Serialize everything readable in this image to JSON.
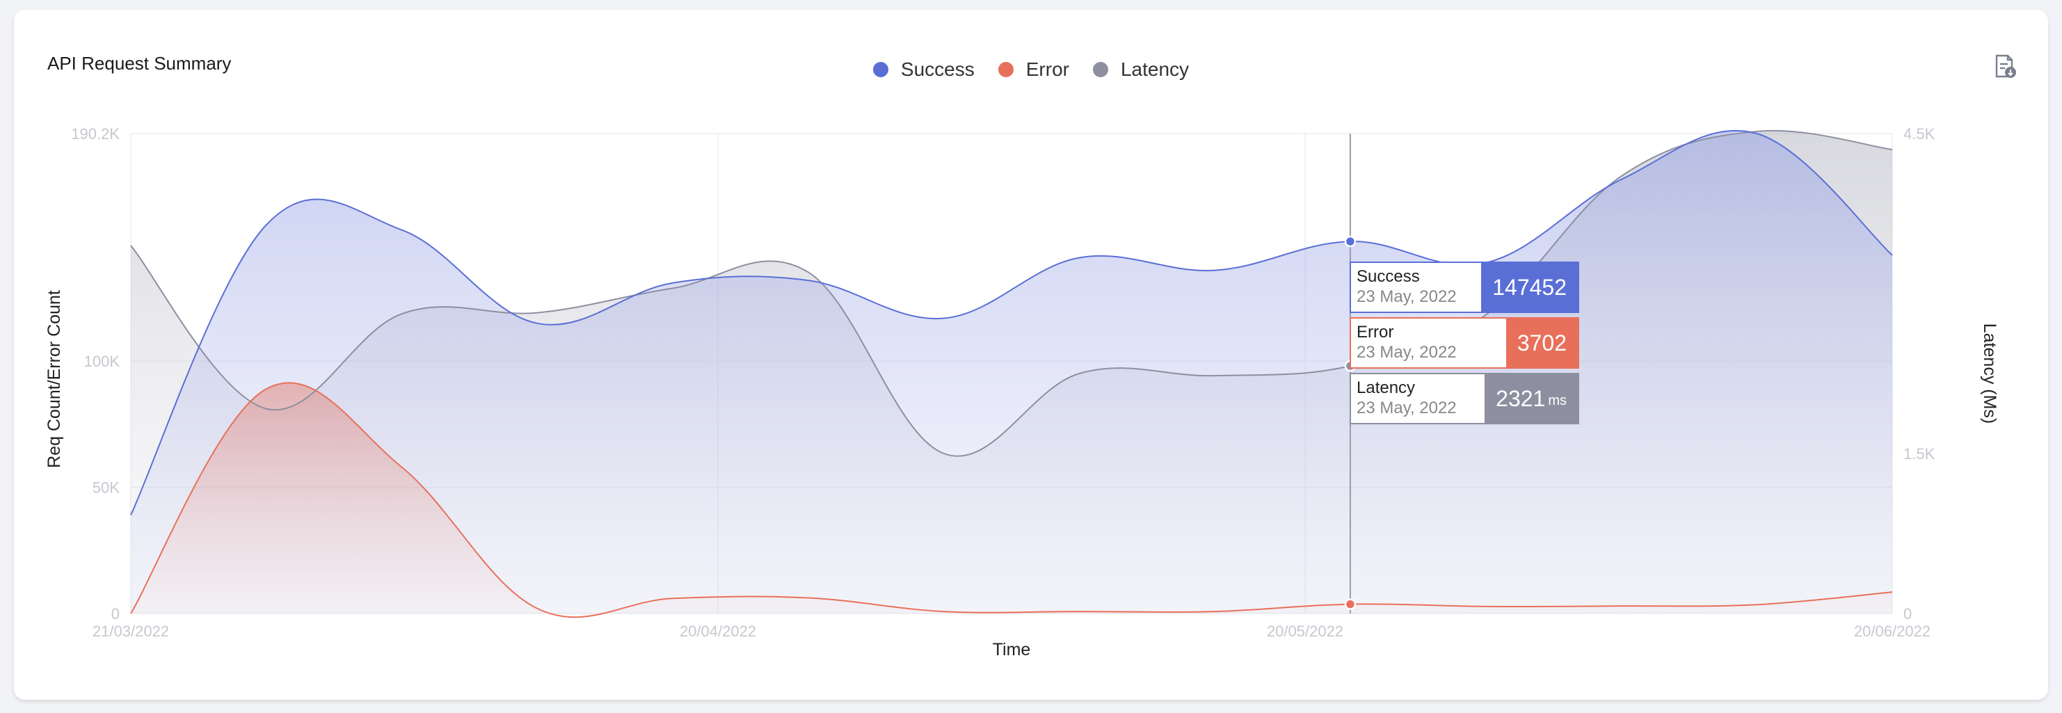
{
  "title": "API Request Summary",
  "legend": [
    {
      "label": "Success",
      "color": "#5a6fd6"
    },
    {
      "label": "Error",
      "color": "#e8705a"
    },
    {
      "label": "Latency",
      "color": "#8d8fa0"
    }
  ],
  "icons": {
    "export": "export-report-icon"
  },
  "tooltip": {
    "date": "23 May, 2022",
    "items": [
      {
        "name": "Success",
        "value": "147452",
        "unit": "",
        "color": "#5a6fd6"
      },
      {
        "name": "Error",
        "value": "3702",
        "unit": "",
        "color": "#e8705a"
      },
      {
        "name": "Latency",
        "value": "2321",
        "unit": "ms",
        "color": "#8d8fa0"
      }
    ]
  },
  "chart_data": {
    "type": "area",
    "xlabel": "Time",
    "ylabel": "Req Count/Error Count",
    "y2label": "Latency (Ms)",
    "ylim": [
      0,
      190200
    ],
    "y2lim": [
      0,
      4500
    ],
    "yticks": [
      {
        "value": 0,
        "label": "0"
      },
      {
        "value": 50000,
        "label": "50K"
      },
      {
        "value": 100000,
        "label": "100K"
      },
      {
        "value": 190200,
        "label": "190.2K"
      }
    ],
    "y2ticks": [
      {
        "value": 0,
        "label": "0"
      },
      {
        "value": 1500,
        "label": "1.5K"
      },
      {
        "value": 4500,
        "label": "4.5K"
      }
    ],
    "xticks": [
      "21/03/2022",
      "20/04/2022",
      "20/05/2022",
      "20/06/2022"
    ],
    "grid": true,
    "x": [
      "2022-03-21",
      "2022-03-28",
      "2022-04-04",
      "2022-04-11",
      "2022-04-18",
      "2022-04-25",
      "2022-05-02",
      "2022-05-09",
      "2022-05-16",
      "2022-05-23",
      "2022-05-30",
      "2022-06-06",
      "2022-06-13",
      "2022-06-20"
    ],
    "series": [
      {
        "name": "Success",
        "axis": "left",
        "color": "#5a6fd6",
        "values": [
          39000,
          154000,
          152000,
          115000,
          131000,
          132000,
          117000,
          141000,
          136000,
          147452,
          139000,
          172000,
          190200,
          142000
        ]
      },
      {
        "name": "Error",
        "axis": "left",
        "color": "#e8705a",
        "values": [
          0,
          89000,
          58000,
          2000,
          6000,
          6200,
          800,
          800,
          800,
          3702,
          2800,
          3000,
          3500,
          8500
        ]
      },
      {
        "name": "Latency",
        "axis": "right",
        "color": "#8d8fa0",
        "values": [
          3450,
          1920,
          2810,
          2820,
          3050,
          3200,
          1500,
          2250,
          2230,
          2321,
          2800,
          4100,
          4520,
          4350
        ]
      }
    ],
    "highlight": {
      "date": "2022-05-23",
      "index": 9
    }
  }
}
